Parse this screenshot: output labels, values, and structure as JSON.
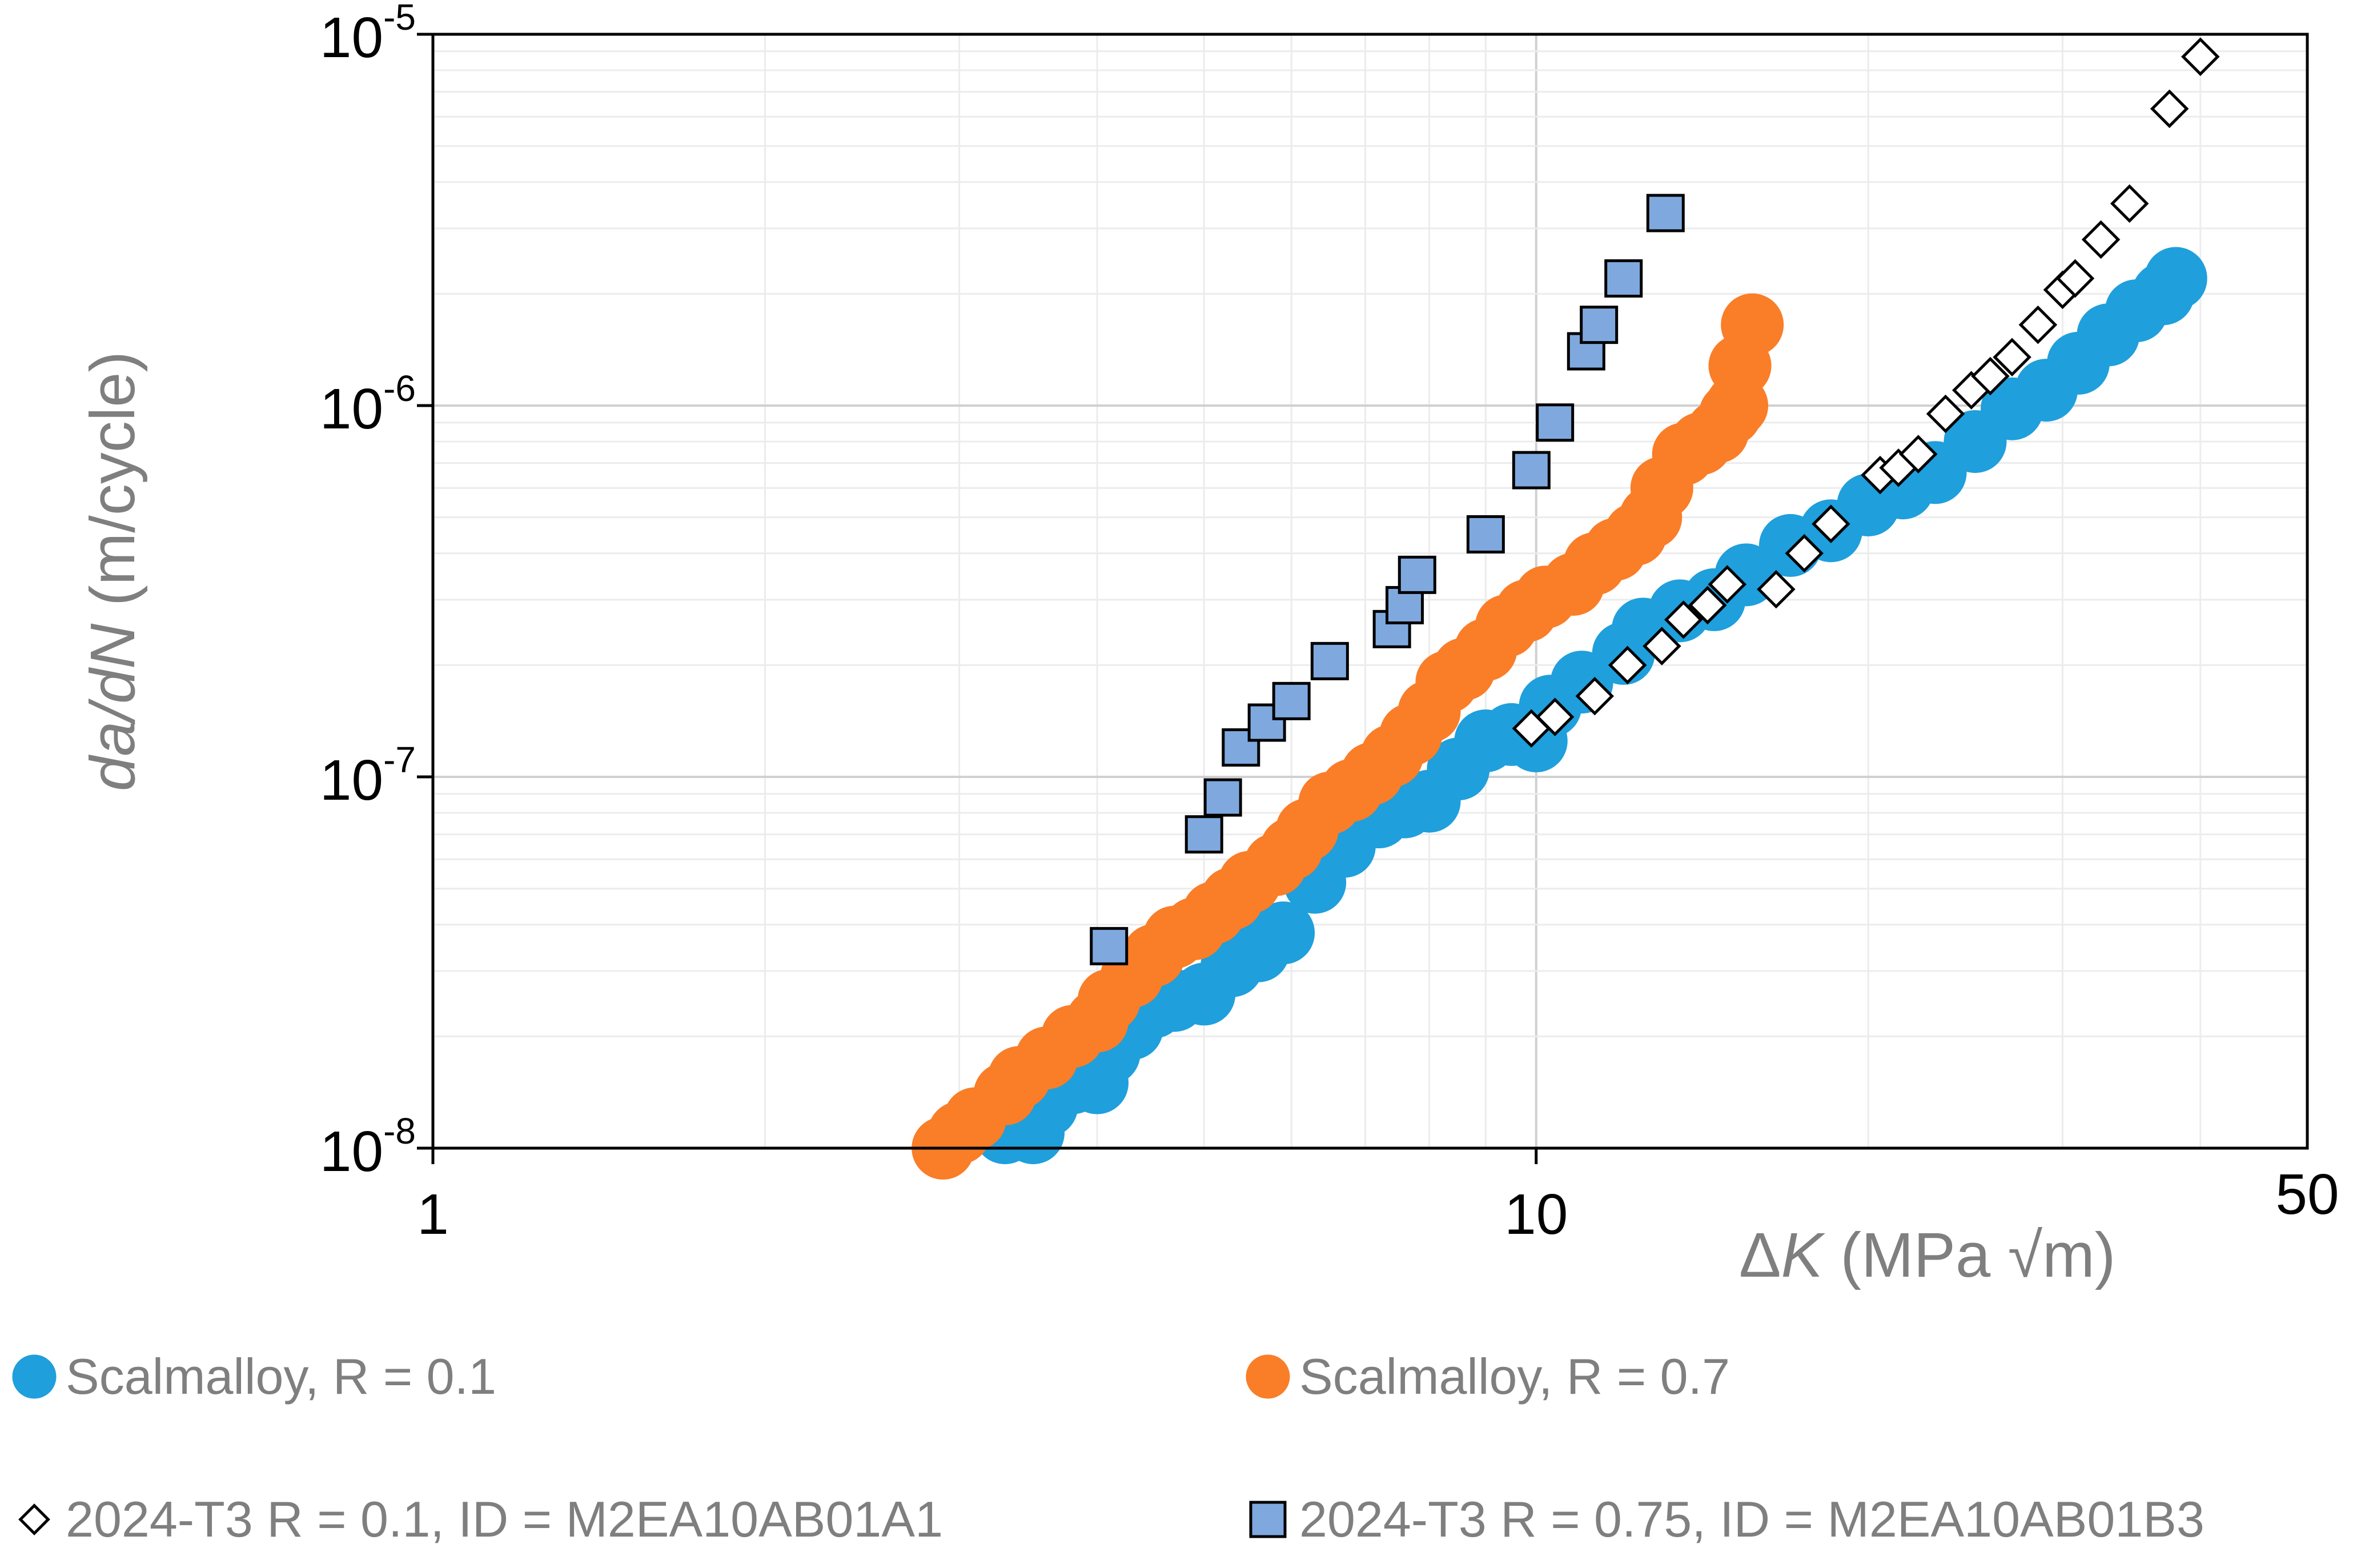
{
  "chart_data": {
    "type": "scatter",
    "title": "",
    "xscale": "log",
    "yscale": "log",
    "xlim": [
      1,
      50
    ],
    "ylim": [
      1e-08,
      1e-05
    ],
    "grid": true,
    "legend_position": "bottom",
    "xlabel": {
      "prefix": "Δ",
      "italic": "K",
      "suffix": " (MPa √m)"
    },
    "ylabel": {
      "italic": "da/dN",
      "suffix": " (m/cycle)"
    },
    "x_ticks": [
      {
        "value": 1,
        "label": "1"
      },
      {
        "value": 10,
        "label": "10"
      },
      {
        "value": 50,
        "label": "50"
      }
    ],
    "y_ticks": [
      {
        "value": 1e-08,
        "base": "10",
        "exp": "-8"
      },
      {
        "value": 1e-07,
        "base": "10",
        "exp": "-7"
      },
      {
        "value": 1e-06,
        "base": "10",
        "exp": "-6"
      },
      {
        "value": 1e-05,
        "base": "10",
        "exp": "-5"
      }
    ],
    "series": [
      {
        "name": "Scalmalloy, R = 0.1",
        "marker": "circle",
        "color": "#1f9fdc",
        "stroke": "#1f9fdc",
        "points": [
          [
            3.3,
            1.1e-08
          ],
          [
            3.5,
            1.1e-08
          ],
          [
            3.6,
            1.3e-08
          ],
          [
            3.8,
            1.5e-08
          ],
          [
            4.0,
            1.5e-08
          ],
          [
            4.1,
            1.8e-08
          ],
          [
            4.3,
            2.1e-08
          ],
          [
            4.5,
            2.4e-08
          ],
          [
            4.7,
            2.5e-08
          ],
          [
            5.0,
            2.6e-08
          ],
          [
            5.3,
            3.1e-08
          ],
          [
            5.6,
            3.4e-08
          ],
          [
            5.9,
            3.8e-08
          ],
          [
            6.3,
            5.2e-08
          ],
          [
            6.7,
            6.5e-08
          ],
          [
            7.2,
            7.8e-08
          ],
          [
            7.6,
            8.3e-08
          ],
          [
            8.0,
            8.6e-08
          ],
          [
            8.5,
            1.05e-07
          ],
          [
            9.0,
            1.25e-07
          ],
          [
            9.5,
            1.3e-07
          ],
          [
            10.0,
            1.25e-07
          ],
          [
            10.3,
            1.55e-07
          ],
          [
            11.0,
            1.8e-07
          ],
          [
            12.0,
            2.15e-07
          ],
          [
            12.5,
            2.5e-07
          ],
          [
            13.5,
            2.8e-07
          ],
          [
            14.5,
            3e-07
          ],
          [
            15.5,
            3.5e-07
          ],
          [
            17.0,
            4.2e-07
          ],
          [
            18.5,
            4.6e-07
          ],
          [
            20.0,
            5.4e-07
          ],
          [
            21.5,
            6e-07
          ],
          [
            23.0,
            6.6e-07
          ],
          [
            25.0,
            8e-07
          ],
          [
            27.0,
            9.8e-07
          ],
          [
            29.0,
            1.1e-06
          ],
          [
            31.0,
            1.3e-06
          ],
          [
            33.0,
            1.55e-06
          ],
          [
            35.0,
            1.8e-06
          ],
          [
            37.0,
            2e-06
          ],
          [
            38.0,
            2.2e-06
          ]
        ]
      },
      {
        "name": "Scalmalloy, R = 0.7",
        "marker": "circle",
        "color": "#fa7d28",
        "stroke": "#fa7d28",
        "points": [
          [
            2.9,
            1e-08
          ],
          [
            3.0,
            1.1e-08
          ],
          [
            3.1,
            1.2e-08
          ],
          [
            3.3,
            1.4e-08
          ],
          [
            3.4,
            1.55e-08
          ],
          [
            3.6,
            1.75e-08
          ],
          [
            3.8,
            2e-08
          ],
          [
            4.0,
            2.2e-08
          ],
          [
            4.1,
            2.5e-08
          ],
          [
            4.3,
            2.9e-08
          ],
          [
            4.5,
            3.3e-08
          ],
          [
            4.7,
            3.7e-08
          ],
          [
            4.9,
            3.9e-08
          ],
          [
            5.1,
            4.3e-08
          ],
          [
            5.3,
            4.7e-08
          ],
          [
            5.5,
            5.2e-08
          ],
          [
            5.8,
            5.8e-08
          ],
          [
            6.0,
            6.4e-08
          ],
          [
            6.2,
            7.2e-08
          ],
          [
            6.5,
            8.5e-08
          ],
          [
            6.8,
            9.2e-08
          ],
          [
            7.1,
            1.02e-07
          ],
          [
            7.4,
            1.14e-07
          ],
          [
            7.7,
            1.3e-07
          ],
          [
            8.0,
            1.5e-07
          ],
          [
            8.3,
            1.8e-07
          ],
          [
            8.6,
            1.95e-07
          ],
          [
            9.0,
            2.2e-07
          ],
          [
            9.4,
            2.55e-07
          ],
          [
            9.8,
            2.8e-07
          ],
          [
            10.2,
            3.05e-07
          ],
          [
            10.8,
            3.3e-07
          ],
          [
            11.3,
            3.75e-07
          ],
          [
            11.8,
            4.1e-07
          ],
          [
            12.3,
            4.5e-07
          ],
          [
            12.7,
            5e-07
          ],
          [
            13.0,
            6e-07
          ],
          [
            13.6,
            7.4e-07
          ],
          [
            14.1,
            7.9e-07
          ],
          [
            14.6,
            8.5e-07
          ],
          [
            15.0,
            9.5e-07
          ],
          [
            15.2,
            1e-06
          ],
          [
            15.3,
            1.28e-06
          ],
          [
            15.7,
            1.65e-06
          ]
        ]
      },
      {
        "name": "2024-T3 R = 0.1, ID = M2EA10AB01A1",
        "marker": "diamond",
        "color": "#ffffff",
        "stroke": "#000000",
        "points": [
          [
            9.9,
            1.35e-07
          ],
          [
            10.4,
            1.45e-07
          ],
          [
            11.3,
            1.65e-07
          ],
          [
            12.1,
            2e-07
          ],
          [
            13.0,
            2.25e-07
          ],
          [
            13.6,
            2.65e-07
          ],
          [
            14.3,
            2.9e-07
          ],
          [
            14.9,
            3.3e-07
          ],
          [
            16.5,
            3.2e-07
          ],
          [
            17.5,
            4e-07
          ],
          [
            18.5,
            4.8e-07
          ],
          [
            20.5,
            6.5e-07
          ],
          [
            21.3,
            6.8e-07
          ],
          [
            22.2,
            7.4e-07
          ],
          [
            23.5,
            9.5e-07
          ],
          [
            24.8,
            1.1e-06
          ],
          [
            25.8,
            1.2e-06
          ],
          [
            27.0,
            1.35e-06
          ],
          [
            28.5,
            1.65e-06
          ],
          [
            30.0,
            2.05e-06
          ],
          [
            30.8,
            2.2e-06
          ],
          [
            32.5,
            2.8e-06
          ],
          [
            34.5,
            3.5e-06
          ],
          [
            37.5,
            6.3e-06
          ],
          [
            40.0,
            8.7e-06
          ]
        ]
      },
      {
        "name": "2024-T3 R = 0.75, ID = M2EA10AB01B3",
        "marker": "square",
        "color": "#7fa9de",
        "stroke": "#000000",
        "points": [
          [
            4.1,
            3.5e-08
          ],
          [
            5.0,
            7e-08
          ],
          [
            5.2,
            8.8e-08
          ],
          [
            5.4,
            1.2e-07
          ],
          [
            5.7,
            1.4e-07
          ],
          [
            6.0,
            1.6e-07
          ],
          [
            6.5,
            2.05e-07
          ],
          [
            7.4,
            2.5e-07
          ],
          [
            7.6,
            2.9e-07
          ],
          [
            7.8,
            3.5e-07
          ],
          [
            9.0,
            4.5e-07
          ],
          [
            9.9,
            6.7e-07
          ],
          [
            10.4,
            9e-07
          ],
          [
            11.1,
            1.4e-06
          ],
          [
            11.4,
            1.65e-06
          ],
          [
            12.0,
            2.2e-06
          ],
          [
            13.1,
            3.3e-06
          ]
        ]
      }
    ]
  }
}
